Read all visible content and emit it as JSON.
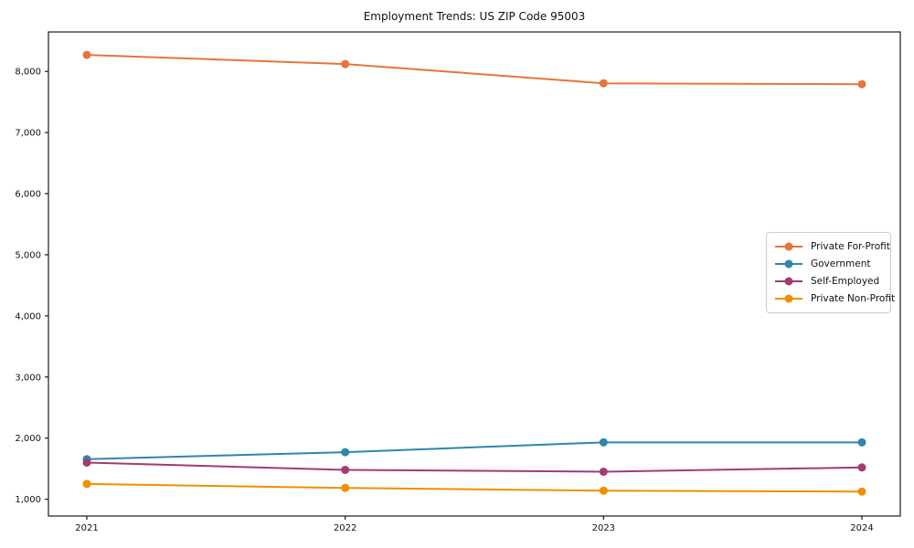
{
  "title": "Employment Trends: US ZIP Code 95003",
  "chart_data": {
    "type": "line",
    "title": "Employment Trends: US ZIP Code 95003",
    "xlabel": "",
    "ylabel": "",
    "categories": [
      "2021",
      "2022",
      "2023",
      "2024"
    ],
    "series": [
      {
        "name": "Private For-Profit",
        "color": "#E8743B",
        "values": [
          8270,
          8120,
          7805,
          7790
        ]
      },
      {
        "name": "Government",
        "color": "#2E86AB",
        "values": [
          1655,
          1770,
          1930,
          1930
        ]
      },
      {
        "name": "Self-Employed",
        "color": "#A23B72",
        "values": [
          1600,
          1480,
          1450,
          1520
        ]
      },
      {
        "name": "Private Non-Profit",
        "color": "#F18F01",
        "values": [
          1250,
          1185,
          1140,
          1125
        ]
      }
    ],
    "ylim": [
      725,
      8645
    ],
    "y_ticks": {
      "values": [
        1000,
        2000,
        3000,
        4000,
        5000,
        6000,
        7000,
        8000
      ],
      "labels": [
        "1,000",
        "2,000",
        "3,000",
        "4,000",
        "5,000",
        "6,000",
        "7,000",
        "8,000"
      ]
    },
    "grid": false,
    "marker": "o",
    "legend_position": "center right",
    "frame_color": "#1a1a1a",
    "background_color": "#ffffff"
  }
}
